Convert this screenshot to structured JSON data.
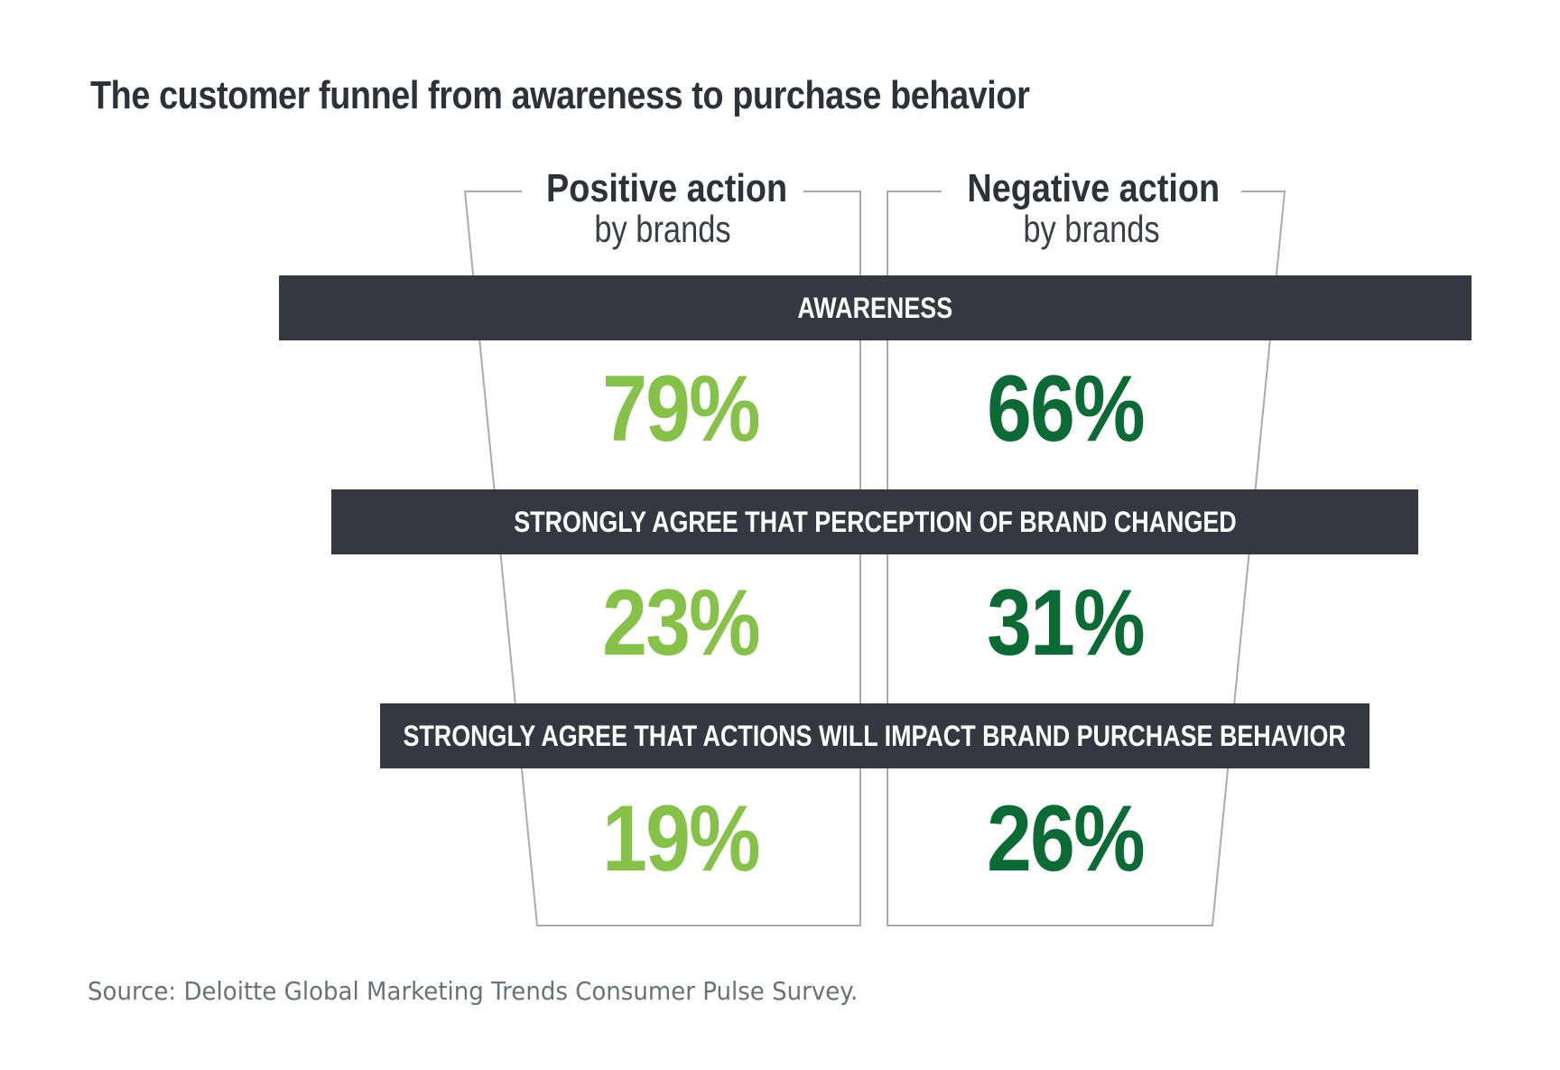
{
  "title": "The customer funnel from awareness to purchase behavior",
  "source": "Source: Deloitte Global Marketing Trends Consumer Pulse Survey.",
  "colors": {
    "positive": "#86c24a",
    "negative": "#0c6b35",
    "band": "#353840",
    "outline": "#aaaaaa"
  },
  "chart_data": {
    "type": "table",
    "title": "The customer funnel from awareness to purchase behavior",
    "columns": [
      {
        "name": "Positive action",
        "subname": "by brands"
      },
      {
        "name": "Negative action",
        "subname": "by brands"
      }
    ],
    "stages": [
      {
        "label": "AWARENESS",
        "positive": "79%",
        "negative": "66%"
      },
      {
        "label": "STRONGLY AGREE THAT PERCEPTION OF BRAND CHANGED",
        "positive": "23%",
        "negative": "31%"
      },
      {
        "label": "STRONGLY AGREE THAT ACTIONS WILL IMPACT BRAND PURCHASE BEHAVIOR",
        "positive": "19%",
        "negative": "26%"
      }
    ]
  }
}
